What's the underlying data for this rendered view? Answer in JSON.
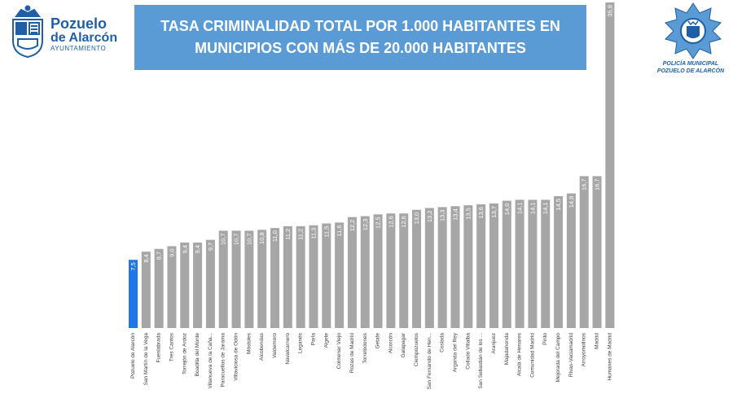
{
  "logo_left": {
    "name_line1": "Pozuelo",
    "name_line2": "de Alarcón",
    "subtitle": "AYUNTAMIENTO"
  },
  "logo_right": {
    "line1": "POLICÍA MUNICIPAL",
    "line2": "POZUELO DE ALARCÓN"
  },
  "colors": {
    "title_bg": "#5b9bd5",
    "bar_default": "#a6a6a6",
    "bar_highlight": "#1f77e6",
    "brand_blue": "#1f5fa8"
  },
  "chart_data": {
    "type": "bar",
    "title_line1": "TASA CRIMINALIDAD TOTAL POR 1.000 HABITANTES EN",
    "title_line2": "MUNICIPIOS CON MÁS DE 20.000 HABITANTES",
    "categories": [
      "Pozuelo de Alarcón",
      "San Martín de la Vega",
      "Fuenlabrada",
      "Tres Cantos",
      "Torrejón de Ardoz",
      "Boadilla del Monte",
      "Villanueva de la Caña...",
      "Paracuellos de Jarama",
      "Villaviciosa de Odón",
      "Móstoles",
      "Alcobendas",
      "Valdemoro",
      "Navalcarnero",
      "Leganés",
      "Parla",
      "Algete",
      "Colmenar Viejo",
      "Rozas de Madrid",
      "Torrelodones",
      "Getafe",
      "Alcorcón",
      "Galapagar",
      "Ciempozuelos",
      "San Fernando de Hen...",
      "Coslada",
      "Arganda del Rey",
      "Collado Villalba",
      "San Sebastián de los ...",
      "Aranjuez",
      "Majadahonda",
      "Alcalá de Henares",
      "Comunidad Madrid",
      "Pinto",
      "Mejorada del Campo",
      "Rivas-Vaciamadrid",
      "Arroyomolinos",
      "Madrid",
      "Humanes de Madrid"
    ],
    "values": [
      7.5,
      8.4,
      8.7,
      9.0,
      9.4,
      9.4,
      9.7,
      10.7,
      10.7,
      10.7,
      10.8,
      11.0,
      11.2,
      11.2,
      11.3,
      11.5,
      11.6,
      12.2,
      12.3,
      12.5,
      12.6,
      12.6,
      13.0,
      13.2,
      13.3,
      13.4,
      13.5,
      13.6,
      13.7,
      14.0,
      14.1,
      14.1,
      14.1,
      14.5,
      14.8,
      16.7,
      16.7,
      35.8
    ],
    "labels": [
      "7,5",
      "8,4",
      "8,7",
      "9,0",
      "9,4",
      "9,4",
      "9,7",
      "10,7",
      "10,7",
      "10,7",
      "10,8",
      "11,0",
      "11,2",
      "11,2",
      "11,3",
      "11,5",
      "11,6",
      "12,2",
      "12,3",
      "12,5",
      "12,6",
      "12,6",
      "13,0",
      "13,2",
      "13,3",
      "13,4",
      "13,5",
      "13,6",
      "13,7",
      "14,0",
      "14,1",
      "14,1",
      "14,1",
      "14,5",
      "14,8",
      "16,7",
      "16,7",
      "35,8"
    ],
    "highlight_index": 0,
    "ylim": [
      0,
      35.8
    ],
    "grid": false,
    "legend": "none"
  }
}
